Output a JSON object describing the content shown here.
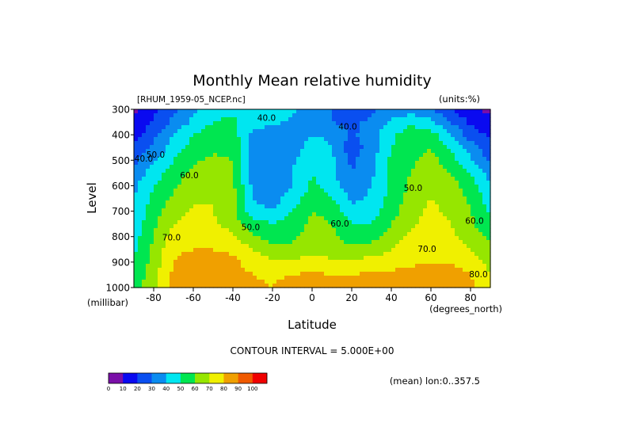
{
  "chart_data": {
    "type": "heatmap",
    "title": "Monthly Mean relative humidity",
    "file_label": "[RHUM_1959-05_NCEP.nc]",
    "units_label": "(units:%)",
    "xlabel": "Latitude",
    "ylabel": "Level",
    "x_unit_label": "(degrees_north)",
    "y_unit_label": "(millibar)",
    "x_range": [
      -90,
      90
    ],
    "y_range": [
      1000,
      300
    ],
    "y_reversed": true,
    "x_ticks": [
      {
        "value": -80,
        "label": "-80"
      },
      {
        "value": -60,
        "label": "-60"
      },
      {
        "value": -40,
        "label": "-40"
      },
      {
        "value": -20,
        "label": "-20"
      },
      {
        "value": 0,
        "label": "0"
      },
      {
        "value": 20,
        "label": "20"
      },
      {
        "value": 40,
        "label": "40"
      },
      {
        "value": 60,
        "label": "60"
      },
      {
        "value": 80,
        "label": "80"
      }
    ],
    "y_ticks": [
      {
        "value": 300,
        "label": "300"
      },
      {
        "value": 400,
        "label": "400"
      },
      {
        "value": 500,
        "label": "500"
      },
      {
        "value": 600,
        "label": "600"
      },
      {
        "value": 700,
        "label": "700"
      },
      {
        "value": 800,
        "label": "800"
      },
      {
        "value": 900,
        "label": "900"
      },
      {
        "value": 1000,
        "label": "1000"
      }
    ],
    "contour_interval_label": "CONTOUR INTERVAL = 5.000E+00",
    "mean_label": "(mean) lon:0..357.5",
    "colorbar": {
      "bounds": [
        0,
        10,
        20,
        30,
        40,
        50,
        60,
        70,
        80,
        90,
        100
      ],
      "tick_labels": [
        "0",
        "10",
        "20",
        "30",
        "40",
        "50",
        "60",
        "70",
        "80",
        "90",
        "100"
      ],
      "colors": [
        "#7a0fa8",
        "#0a0af0",
        "#0a4ff0",
        "#0a8cf0",
        "#00e6f0",
        "#00e650",
        "#96e600",
        "#f0f000",
        "#f0a000",
        "#f05a00",
        "#f00000"
      ]
    },
    "contour_labels": [
      {
        "text": "40.0",
        "x": -85,
        "y": 505
      },
      {
        "text": "50.0",
        "x": -79,
        "y": 490
      },
      {
        "text": "60.0",
        "x": -62,
        "y": 570
      },
      {
        "text": "40.0",
        "x": -23,
        "y": 345
      },
      {
        "text": "40.0",
        "x": 18,
        "y": 380
      },
      {
        "text": "50.0",
        "x": -31,
        "y": 775
      },
      {
        "text": "60.0",
        "x": 14,
        "y": 760
      },
      {
        "text": "50.0",
        "x": 51,
        "y": 620
      },
      {
        "text": "70.0",
        "x": -71,
        "y": 815
      },
      {
        "text": "70.0",
        "x": 58,
        "y": 860
      },
      {
        "text": "60.0",
        "x": 82,
        "y": 750
      },
      {
        "text": "80.0",
        "x": 84,
        "y": 960
      }
    ],
    "latitudes": [
      -90,
      -80,
      -70,
      -60,
      -50,
      -40,
      -30,
      -20,
      -10,
      0,
      10,
      20,
      30,
      40,
      50,
      60,
      70,
      80,
      90
    ],
    "levels": [
      300,
      350,
      400,
      450,
      500,
      550,
      600,
      650,
      700,
      750,
      800,
      850,
      900,
      950,
      1000
    ],
    "values": [
      [
        8,
        18,
        28,
        38,
        45,
        48,
        50,
        48,
        42,
        35,
        30,
        25,
        28,
        32,
        35,
        32,
        20,
        12,
        8
      ],
      [
        10,
        22,
        32,
        42,
        50,
        52,
        45,
        42,
        38,
        35,
        30,
        28,
        32,
        42,
        48,
        42,
        30,
        18,
        12
      ],
      [
        15,
        28,
        40,
        50,
        56,
        55,
        38,
        32,
        35,
        40,
        38,
        28,
        35,
        48,
        55,
        55,
        40,
        25,
        18
      ],
      [
        22,
        32,
        45,
        54,
        58,
        58,
        35,
        30,
        35,
        45,
        40,
        24,
        35,
        50,
        57,
        60,
        48,
        35,
        22
      ],
      [
        28,
        38,
        50,
        58,
        62,
        60,
        35,
        32,
        38,
        48,
        42,
        28,
        36,
        52,
        58,
        64,
        54,
        42,
        28
      ],
      [
        32,
        45,
        55,
        62,
        66,
        60,
        36,
        32,
        40,
        50,
        42,
        30,
        38,
        52,
        60,
        66,
        60,
        50,
        35
      ],
      [
        38,
        50,
        58,
        66,
        68,
        62,
        38,
        33,
        40,
        52,
        45,
        33,
        40,
        53,
        62,
        70,
        64,
        55,
        42
      ],
      [
        40,
        52,
        62,
        68,
        70,
        64,
        40,
        35,
        45,
        55,
        50,
        38,
        42,
        54,
        64,
        70,
        66,
        58,
        45
      ],
      [
        42,
        55,
        66,
        72,
        70,
        62,
        44,
        40,
        50,
        60,
        58,
        42,
        45,
        56,
        66,
        72,
        68,
        60,
        48
      ],
      [
        44,
        58,
        70,
        74,
        72,
        66,
        55,
        50,
        55,
        62,
        60,
        50,
        50,
        60,
        68,
        74,
        70,
        62,
        52
      ],
      [
        46,
        60,
        74,
        78,
        76,
        72,
        62,
        55,
        58,
        65,
        62,
        55,
        56,
        64,
        72,
        76,
        72,
        66,
        58
      ],
      [
        48,
        62,
        78,
        80,
        80,
        78,
        70,
        62,
        62,
        68,
        65,
        62,
        64,
        70,
        76,
        78,
        76,
        70,
        62
      ],
      [
        50,
        64,
        80,
        84,
        84,
        82,
        76,
        72,
        72,
        74,
        72,
        72,
        74,
        76,
        78,
        80,
        80,
        76,
        66
      ],
      [
        52,
        66,
        82,
        88,
        86,
        84,
        80,
        78,
        80,
        82,
        80,
        80,
        82,
        82,
        84,
        84,
        84,
        80,
        70
      ],
      [
        54,
        68,
        84,
        90,
        86,
        84,
        82,
        80,
        86,
        88,
        86,
        84,
        84,
        84,
        86,
        88,
        88,
        84,
        72
      ]
    ]
  }
}
